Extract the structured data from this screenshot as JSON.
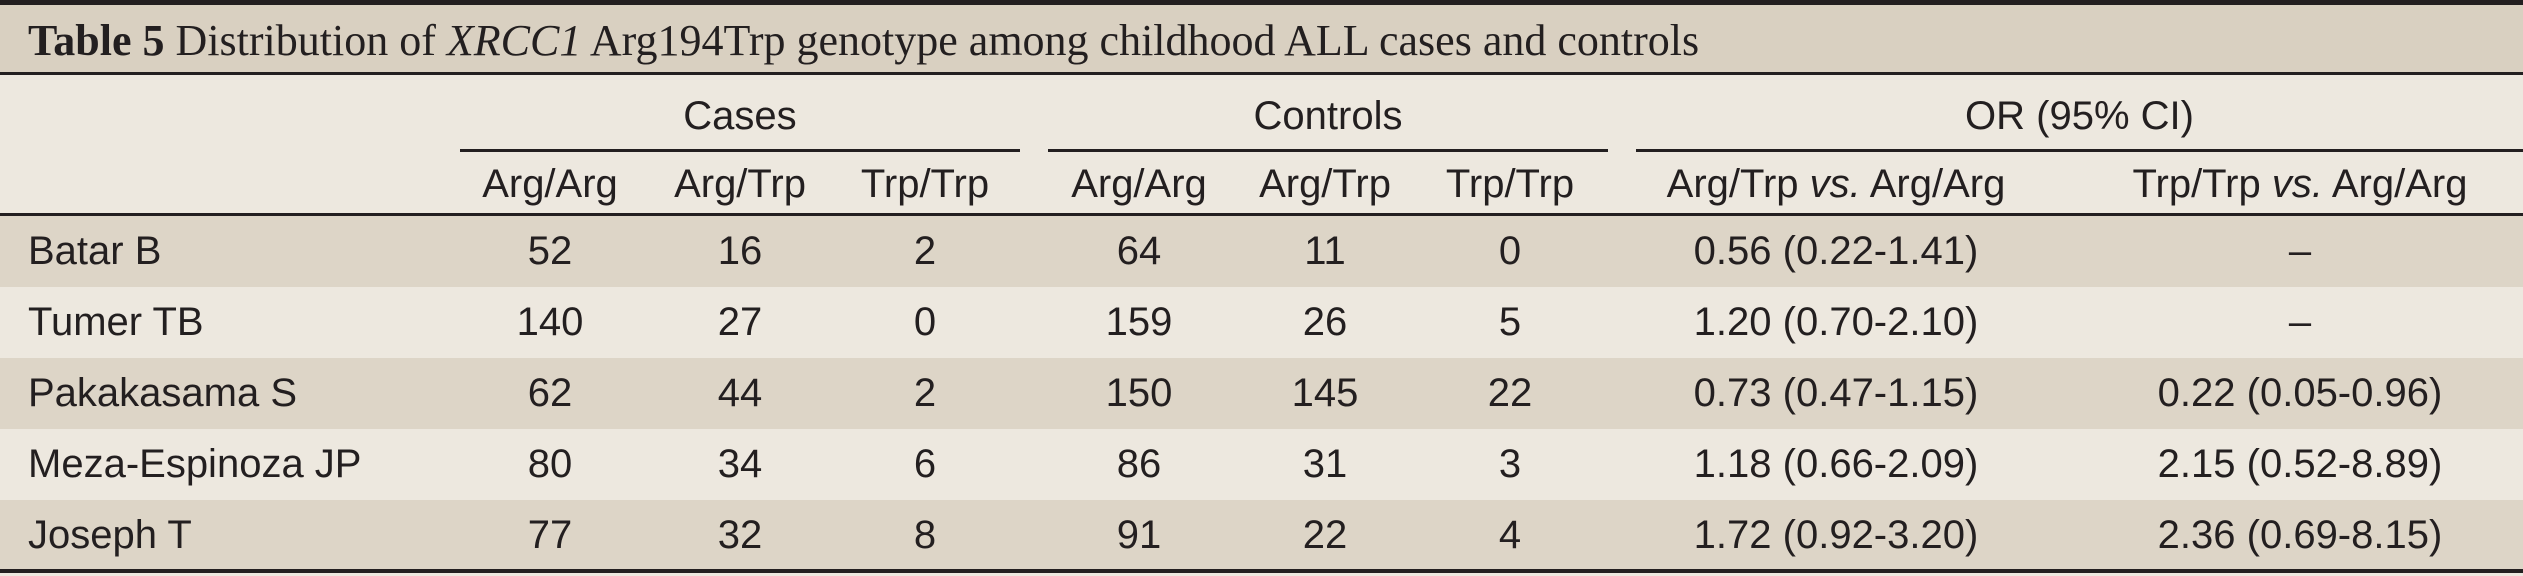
{
  "caption": {
    "label": "Table 5",
    "pre": "Distribution of ",
    "gene": "XRCC1",
    "post": " Arg194Trp genotype among childhood ALL cases and controls"
  },
  "groups": [
    "Cases",
    "Controls",
    "OR (95% CI)"
  ],
  "columns": {
    "cases": [
      "Arg/Arg",
      "Arg/Trp",
      "Trp/Trp"
    ],
    "controls": [
      "Arg/Arg",
      "Arg/Trp",
      "Trp/Trp"
    ],
    "or1_a": "Arg/Trp ",
    "or_vs": "vs.",
    "or1_b": " Arg/Arg",
    "or2_a": "Trp/Trp ",
    "or2_b": " Arg/Arg"
  },
  "rows": [
    {
      "name": "Batar B",
      "c1": "52",
      "c2": "16",
      "c3": "2",
      "k1": "64",
      "k2": "11",
      "k3": "0",
      "or1": "0.56 (0.22-1.41)",
      "or2": "–"
    },
    {
      "name": "Tumer TB",
      "c1": "140",
      "c2": "27",
      "c3": "0",
      "k1": "159",
      "k2": "26",
      "k3": "5",
      "or1": "1.20 (0.70-2.10)",
      "or2": "–"
    },
    {
      "name": "Pakakasama S",
      "c1": "62",
      "c2": "44",
      "c3": "2",
      "k1": "150",
      "k2": "145",
      "k3": "22",
      "or1": "0.73 (0.47-1.15)",
      "or2": "0.22 (0.05-0.96)"
    },
    {
      "name": "Meza-Espinoza JP",
      "c1": "80",
      "c2": "34",
      "c3": "6",
      "k1": "86",
      "k2": "31",
      "k3": "3",
      "or1": "1.18 (0.66-2.09)",
      "or2": "2.15 (0.52-8.89)"
    },
    {
      "name": "Joseph T",
      "c1": "77",
      "c2": "32",
      "c3": "8",
      "k1": "91",
      "k2": "22",
      "k3": "4",
      "or1": "1.72 (0.92-3.20)",
      "or2": "2.36 (0.69-8.15)"
    }
  ]
}
